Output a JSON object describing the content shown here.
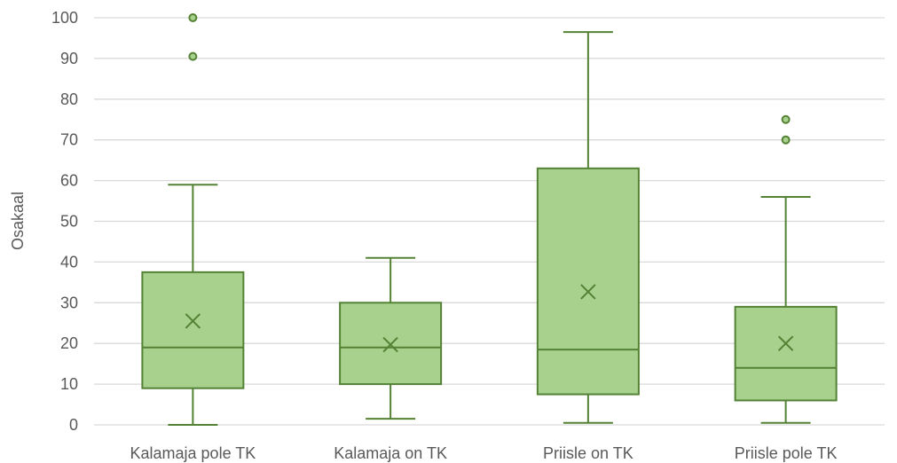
{
  "chart_data": {
    "type": "boxplot",
    "title": "",
    "xlabel": "",
    "ylabel": "Osakaal",
    "ylim": [
      0,
      100
    ],
    "yticks": [
      0,
      10,
      20,
      30,
      40,
      50,
      60,
      70,
      80,
      90,
      100
    ],
    "grid": "horizontal",
    "categories": [
      "Kalamaja pole TK",
      "Kalamaja on TK",
      "Priisle on TK",
      "Priisle pole TK"
    ],
    "boxes": [
      {
        "whisker_low": 0,
        "q1": 9,
        "median": 19,
        "q3": 37.5,
        "whisker_high": 59,
        "mean": 25.5,
        "outliers": [
          90.5,
          100
        ]
      },
      {
        "whisker_low": 1.5,
        "q1": 10,
        "median": 19,
        "q3": 30,
        "whisker_high": 41,
        "mean": 19.7,
        "outliers": []
      },
      {
        "whisker_low": 0.5,
        "q1": 7.5,
        "median": 18.5,
        "q3": 63,
        "whisker_high": 96.5,
        "mean": 32.7,
        "outliers": []
      },
      {
        "whisker_low": 0.5,
        "q1": 6,
        "median": 14,
        "q3": 29,
        "whisker_high": 56,
        "mean": 20,
        "outliers": [
          70,
          75
        ]
      }
    ],
    "colors": {
      "fill": "#a9d18e",
      "stroke": "#548235",
      "grid": "#d9d9d9",
      "text": "#595959"
    }
  }
}
